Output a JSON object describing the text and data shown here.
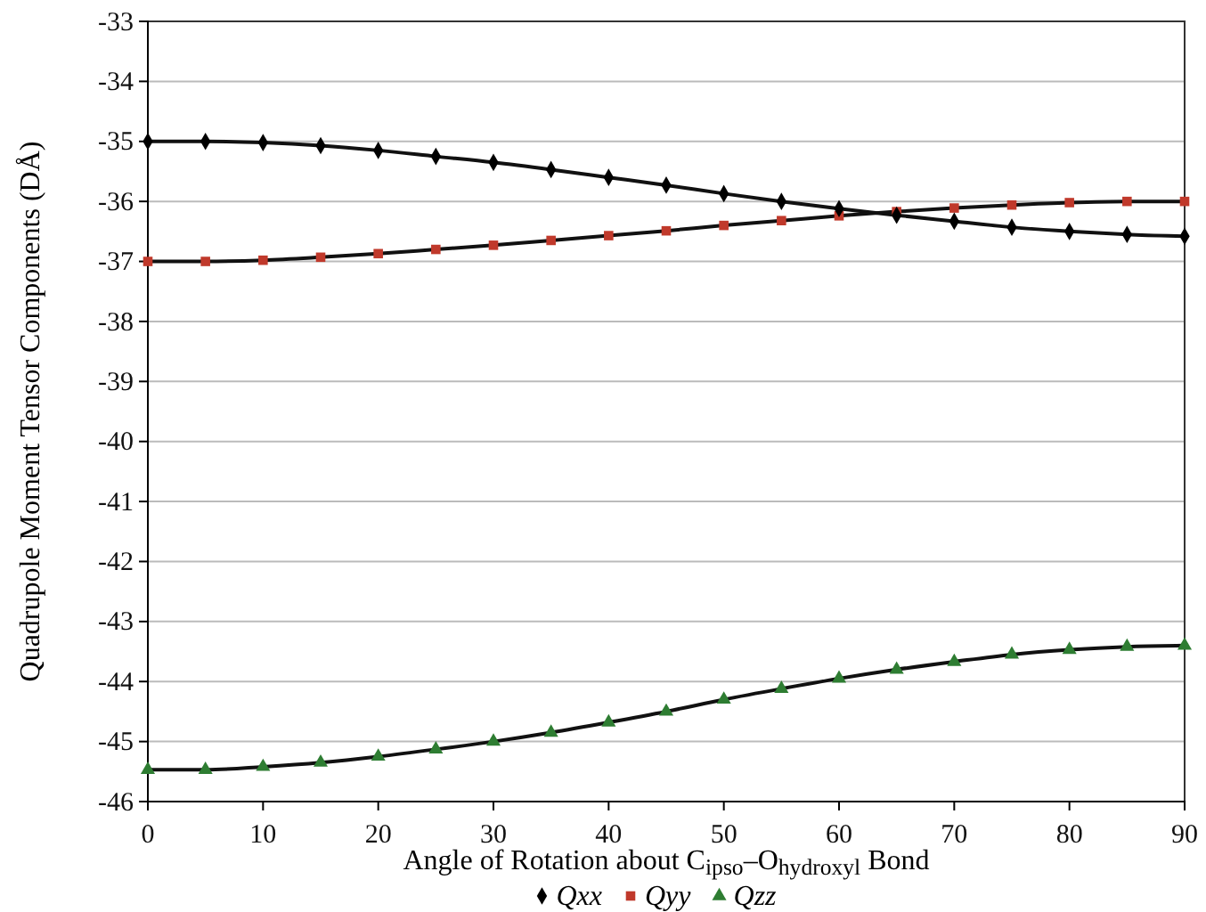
{
  "chart_data": {
    "type": "line",
    "xlabel": "Angle of Rotation about C$_{ipso}$–O$_{hydroxyl}$ Bond",
    "ylabel": "Quadrupole Moment Tensor Components (DÅ)",
    "x": [
      0,
      5,
      10,
      15,
      20,
      25,
      30,
      35,
      40,
      45,
      50,
      55,
      60,
      65,
      70,
      75,
      80,
      85,
      90
    ],
    "series": [
      {
        "name": "Qxx",
        "color": "#000000",
        "marker": "diamond",
        "values": [
          -35.0,
          -35.0,
          -35.02,
          -35.07,
          -35.15,
          -35.25,
          -35.35,
          -35.47,
          -35.6,
          -35.73,
          -35.87,
          -36.0,
          -36.12,
          -36.23,
          -36.33,
          -36.43,
          -36.5,
          -36.55,
          -36.58
        ]
      },
      {
        "name": "Qyy",
        "color": "#c0392b",
        "marker": "square",
        "values": [
          -37.0,
          -37.0,
          -36.98,
          -36.93,
          -36.87,
          -36.8,
          -36.73,
          -36.65,
          -36.57,
          -36.49,
          -36.4,
          -36.32,
          -36.24,
          -36.17,
          -36.11,
          -36.06,
          -36.02,
          -36.0,
          -36.0
        ]
      },
      {
        "name": "Qzz",
        "color": "#2e7d32",
        "marker": "triangle",
        "values": [
          -45.47,
          -45.47,
          -45.42,
          -45.35,
          -45.25,
          -45.13,
          -45.0,
          -44.85,
          -44.68,
          -44.5,
          -44.3,
          -44.12,
          -43.95,
          -43.8,
          -43.67,
          -43.55,
          -43.47,
          -43.42,
          -43.4
        ]
      }
    ],
    "xlim": [
      0,
      90
    ],
    "xticks": [
      0,
      10,
      20,
      30,
      40,
      50,
      60,
      70,
      80,
      90
    ],
    "ylim": [
      -46,
      -33
    ],
    "yticks": [
      -46,
      -45,
      -44,
      -43,
      -42,
      -41,
      -40,
      -39,
      -38,
      -37,
      -36,
      -35,
      -34,
      -33
    ],
    "grid": "y",
    "legend": "bottom",
    "line_style": "solid"
  }
}
